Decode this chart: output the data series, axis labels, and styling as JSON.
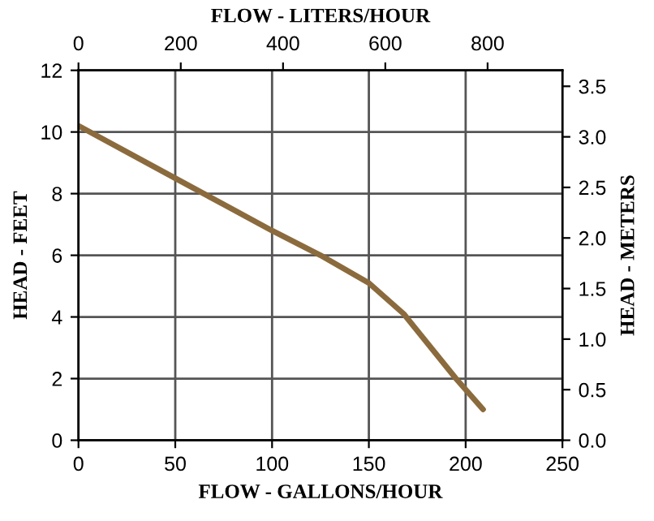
{
  "chart_data": {
    "type": "line",
    "xlabel": "FLOW - GALLONS/HOUR",
    "ylabel": "HEAD - FEET",
    "y2label": "HEAD - METERS",
    "x2label": "FLOW - LITERS/HOUR",
    "series": [
      {
        "color": "#8b6b3d",
        "x": [
          0,
          50,
          100,
          125,
          150,
          168,
          195,
          209
        ],
        "values": [
          10.2,
          8.5,
          6.8,
          6.0,
          5.1,
          4.1,
          2.0,
          1.0
        ]
      }
    ],
    "xlim": [
      0,
      250
    ],
    "xticks": [
      0,
      50,
      100,
      150,
      200,
      250
    ],
    "ylim": [
      0,
      12
    ],
    "yticks": [
      0,
      2,
      4,
      6,
      8,
      10,
      12
    ],
    "x2lim": [
      0,
      946.35
    ],
    "x2ticks": [
      0,
      200,
      400,
      600,
      800
    ],
    "y2lim": [
      0,
      3.6576
    ],
    "y2ticks": [
      {
        "value": 0,
        "label": "0.0"
      },
      0.5,
      {
        "value": 1,
        "label": "1.0"
      },
      1.5,
      {
        "value": 2,
        "label": "2.0"
      },
      2.5,
      {
        "value": 3,
        "label": "3.0"
      },
      3.5
    ],
    "grid": true,
    "marker": "none",
    "line_style": "solid"
  }
}
